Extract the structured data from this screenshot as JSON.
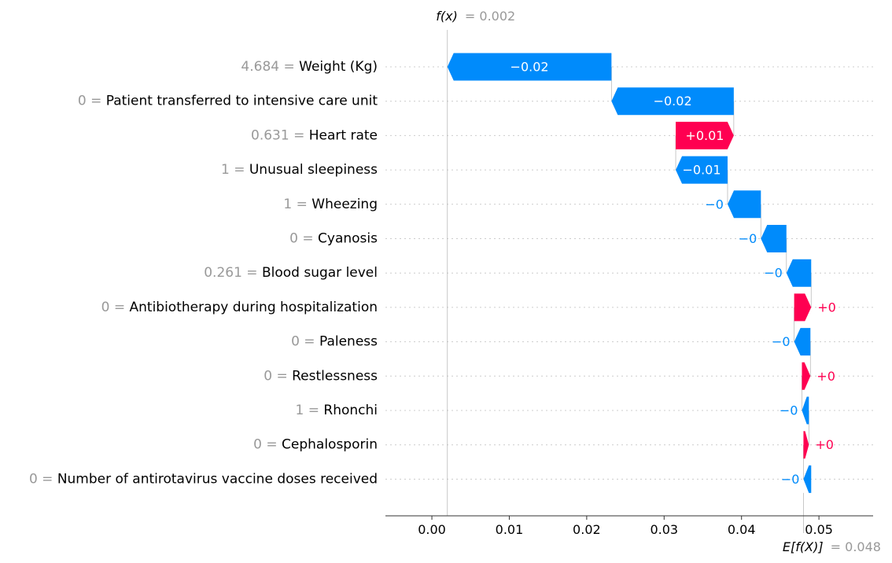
{
  "chart_data": {
    "type": "waterfall",
    "base_value": 0.048,
    "output_value": 0.002,
    "fx_label": "f(x)",
    "fx_value_text": "= 0.002",
    "ex_label": "E[f(X)]",
    "ex_value_text": "= 0.048",
    "xlim": [
      -0.006,
      0.057
    ],
    "x_ticks": [
      0.0,
      0.01,
      0.02,
      0.03,
      0.04,
      0.05
    ],
    "x_tick_labels": [
      "0.00",
      "0.01",
      "0.02",
      "0.03",
      "0.04",
      "0.05"
    ],
    "colors": {
      "positive": "#ff0051",
      "negative": "#008bfb",
      "feature_value": "#999999",
      "feature_name": "#000000",
      "grid": "#cccccc"
    },
    "features": [
      {
        "value": "4.684",
        "name": "Weight (Kg)",
        "start": 0.0232,
        "end": 0.002,
        "label": "−0.02"
      },
      {
        "value": "0",
        "name": "Patient transferred to intensive care unit",
        "start": 0.039,
        "end": 0.0232,
        "label": "−0.02"
      },
      {
        "value": "0.631",
        "name": "Heart rate",
        "start": 0.0315,
        "end": 0.039,
        "label": "+0.01"
      },
      {
        "value": "1",
        "name": "Unusual sleepiness",
        "start": 0.0382,
        "end": 0.0315,
        "label": "−0.01"
      },
      {
        "value": "1",
        "name": "Wheezing",
        "start": 0.0425,
        "end": 0.0382,
        "label": "−0"
      },
      {
        "value": "0",
        "name": "Cyanosis",
        "start": 0.0458,
        "end": 0.0425,
        "label": "−0"
      },
      {
        "value": "0.261",
        "name": "Blood sugar level",
        "start": 0.049,
        "end": 0.0458,
        "label": "−0"
      },
      {
        "value": "0",
        "name": "Antibiotherapy during hospitalization",
        "start": 0.0468,
        "end": 0.049,
        "label": "+0"
      },
      {
        "value": "0",
        "name": "Paleness",
        "start": 0.0489,
        "end": 0.0468,
        "label": "−0"
      },
      {
        "value": "0",
        "name": "Restlessness",
        "start": 0.0478,
        "end": 0.0489,
        "label": "+0"
      },
      {
        "value": "1",
        "name": "Rhonchi",
        "start": 0.0487,
        "end": 0.0478,
        "label": "−0"
      },
      {
        "value": "0",
        "name": "Cephalosporin",
        "start": 0.048,
        "end": 0.0487,
        "label": "+0"
      },
      {
        "value": "0",
        "name": "Number of antirotavirus vaccine doses received",
        "start": 0.049,
        "end": 0.048,
        "label": "−0"
      }
    ]
  }
}
